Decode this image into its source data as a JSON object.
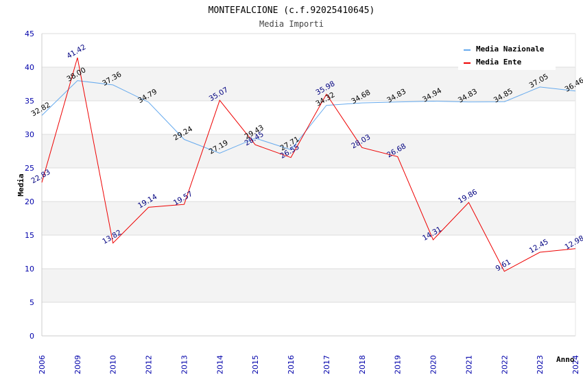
{
  "chart_data": {
    "type": "line",
    "title": "MONTEFALCIONE (c.f.92025410645)",
    "subtitle": "Media Importi",
    "xlabel": "Anno",
    "ylabel": "Media",
    "ylim": [
      0,
      45
    ],
    "yticks": [
      0,
      5,
      10,
      15,
      20,
      25,
      30,
      35,
      40,
      45
    ],
    "categories": [
      "2006",
      "2009",
      "2010",
      "2012",
      "2013",
      "2014",
      "2015",
      "2016",
      "2017",
      "2018",
      "2019",
      "2020",
      "2021",
      "2022",
      "2023",
      "2024"
    ],
    "series": [
      {
        "name": "Media Nazionale",
        "color": "#66aaee",
        "label_color": "#000000",
        "values": [
          32.82,
          38.0,
          37.36,
          34.79,
          29.24,
          27.19,
          29.43,
          27.71,
          34.32,
          34.68,
          34.83,
          34.94,
          34.83,
          34.85,
          37.05,
          36.46
        ],
        "labels": [
          "32.82",
          "38.00",
          "37.36",
          "34.79",
          "29.24",
          "27.19",
          "29.43",
          "27.71",
          "34.32",
          "34.68",
          "34.83",
          "34.94",
          "34.83",
          "34.85",
          "37.05",
          "36.46"
        ]
      },
      {
        "name": "Media Ente",
        "color": "#ee0000",
        "label_color": "#000080",
        "values": [
          22.83,
          41.42,
          13.82,
          19.14,
          19.57,
          35.07,
          28.45,
          26.55,
          35.98,
          28.03,
          26.68,
          14.31,
          19.86,
          9.61,
          12.45,
          12.98
        ],
        "labels": [
          "22.83",
          "41.42",
          "13.82",
          "19.14",
          "19.57",
          "35.07",
          "28.45",
          "26.55",
          "35.98",
          "28.03",
          "26.68",
          "14.31",
          "19.86",
          "9.61",
          "12.45",
          "12.98"
        ]
      }
    ],
    "grid": true,
    "legend_position": "top-right"
  }
}
